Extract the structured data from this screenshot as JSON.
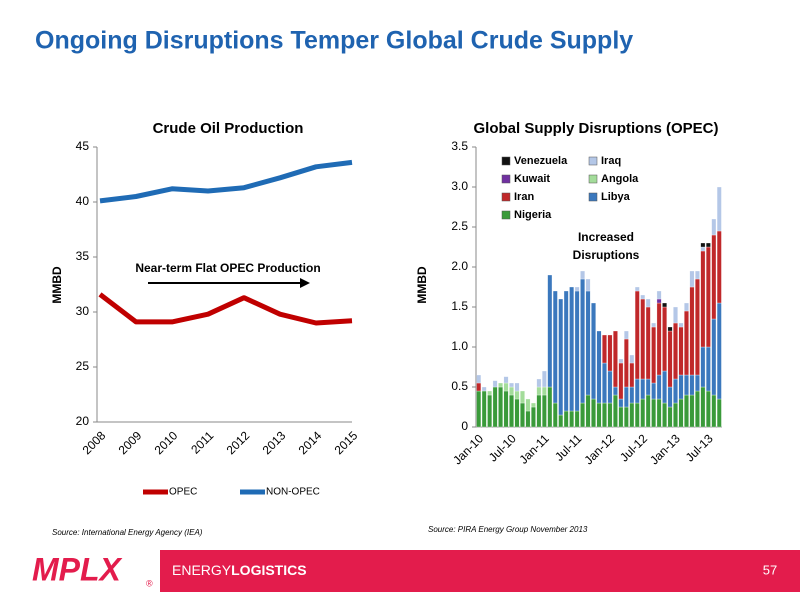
{
  "title": "Ongoing Disruptions Temper Global Crude Supply",
  "chart_data": [
    {
      "type": "line",
      "title": "Crude Oil Production",
      "y_label": "MMBD",
      "source": "Source:  International Energy Agency (IEA)",
      "annotation": "Near-term Flat OPEC Production",
      "categories": [
        "2008",
        "2009",
        "2010",
        "2011",
        "2012",
        "2013",
        "2014",
        "2015"
      ],
      "series": [
        {
          "name": "OPEC",
          "color": "#c00000",
          "values": [
            31.6,
            29.1,
            29.1,
            29.8,
            31.3,
            29.8,
            29.0,
            29.2
          ]
        },
        {
          "name": "NON-OPEC",
          "color": "#1f6bb5",
          "values": [
            40.1,
            40.5,
            41.2,
            41.0,
            41.3,
            42.2,
            43.2,
            43.6
          ]
        }
      ],
      "ylim": [
        20,
        45
      ],
      "yticks": [
        20,
        25,
        30,
        35,
        40,
        45
      ],
      "legend": "bottom"
    },
    {
      "type": "stacked-bar",
      "title": "Global Supply Disruptions (OPEC)",
      "y_label": "MMBD",
      "source": "Source:  PIRA Energy Group November 2013",
      "annotation": "Increased Disruptions",
      "categories": [
        "Jan-10",
        null,
        null,
        null,
        null,
        null,
        "Jul-10",
        null,
        null,
        null,
        null,
        null,
        "Jan-11",
        null,
        null,
        null,
        null,
        null,
        "Jul-11",
        null,
        null,
        null,
        null,
        null,
        "Jan-12",
        null,
        null,
        null,
        null,
        null,
        "Jul-12",
        null,
        null,
        null,
        null,
        null,
        "Jan-13",
        null,
        null,
        null,
        null,
        null,
        "Jul-13",
        null,
        null
      ],
      "series": [
        {
          "name": "Nigeria",
          "color": "#3a9a3a",
          "values": [
            0.45,
            0.45,
            0.4,
            0.5,
            0.5,
            0.45,
            0.4,
            0.35,
            0.3,
            0.2,
            0.25,
            0.4,
            0.4,
            0.5,
            0.3,
            0.15,
            0.2,
            0.2,
            0.2,
            0.3,
            0.4,
            0.35,
            0.3,
            0.3,
            0.3,
            0.4,
            0.25,
            0.25,
            0.3,
            0.3,
            0.35,
            0.4,
            0.35,
            0.35,
            0.3,
            0.25,
            0.3,
            0.35,
            0.4,
            0.4,
            0.45,
            0.5,
            0.45,
            0.4,
            0.35
          ]
        },
        {
          "name": "Libya",
          "color": "#3b78bd",
          "values": [
            0,
            0,
            0,
            0,
            0,
            0,
            0,
            0,
            0,
            0,
            0,
            0,
            0,
            1.4,
            1.4,
            1.45,
            1.5,
            1.55,
            1.5,
            1.55,
            1.3,
            1.2,
            0.9,
            0.5,
            0.4,
            0.1,
            0.1,
            0.25,
            0.2,
            0.3,
            0.25,
            0.2,
            0.2,
            0.3,
            0.4,
            0.25,
            0.3,
            0.3,
            0.25,
            0.25,
            0.2,
            0.5,
            0.55,
            0.95,
            1.2
          ]
        },
        {
          "name": "Iran",
          "color": "#c0282a",
          "values": [
            0.1,
            0,
            0,
            0,
            0,
            0,
            0,
            0,
            0,
            0,
            0,
            0,
            0,
            0,
            0,
            0,
            0,
            0,
            0,
            0,
            0,
            0,
            0,
            0.35,
            0.45,
            0.7,
            0.45,
            0.6,
            0.3,
            1.1,
            1.0,
            0.9,
            0.7,
            0.9,
            0.8,
            0.7,
            0.7,
            0.6,
            0.8,
            1.1,
            1.2,
            1.2,
            1.25,
            1.05,
            0.9
          ]
        },
        {
          "name": "Angola",
          "color": "#a3dc9a",
          "values": [
            0,
            0,
            0.05,
            0,
            0.05,
            0.1,
            0.1,
            0.1,
            0.15,
            0.15,
            0.05,
            0.1,
            0.1,
            0,
            0,
            0,
            0,
            0,
            0,
            0,
            0,
            0,
            0,
            0,
            0,
            0,
            0,
            0,
            0,
            0,
            0,
            0,
            0,
            0,
            0,
            0,
            0,
            0,
            0,
            0,
            0,
            0,
            0,
            0,
            0
          ]
        },
        {
          "name": "Kuwait",
          "color": "#7030a0",
          "values": [
            0,
            0,
            0,
            0,
            0,
            0,
            0,
            0,
            0,
            0,
            0,
            0,
            0,
            0,
            0,
            0,
            0,
            0,
            0,
            0,
            0,
            0,
            0,
            0,
            0,
            0,
            0,
            0,
            0,
            0,
            0,
            0,
            0,
            0.05,
            0,
            0,
            0,
            0,
            0,
            0,
            0,
            0,
            0,
            0,
            0
          ]
        },
        {
          "name": "Iraq",
          "color": "#b4c7e7",
          "values": [
            0.1,
            0.05,
            0,
            0.08,
            0,
            0.08,
            0.05,
            0.1,
            0,
            0,
            0,
            0.1,
            0.2,
            0,
            0,
            0,
            0,
            0,
            0.05,
            0.1,
            0.15,
            0,
            0,
            0,
            0,
            0,
            0.05,
            0.1,
            0.1,
            0.05,
            0.05,
            0.1,
            0.05,
            0.1,
            0,
            0,
            0.2,
            0.05,
            0.1,
            0.2,
            0.1,
            0.05,
            0,
            0.2,
            0.55
          ]
        },
        {
          "name": "Venezuela",
          "color": "#111111",
          "values": [
            0,
            0,
            0,
            0,
            0,
            0,
            0,
            0,
            0,
            0,
            0,
            0,
            0,
            0,
            0,
            0,
            0,
            0,
            0,
            0,
            0,
            0,
            0,
            0,
            0,
            0,
            0,
            0,
            0,
            0,
            0,
            0,
            0,
            0,
            0.05,
            0.05,
            0,
            0,
            0,
            0,
            0,
            0.05,
            0.05,
            0,
            0
          ]
        }
      ],
      "ylim": [
        0,
        3.5
      ],
      "yticks": [
        0,
        0.5,
        {
          "value": 1,
          "label": "1.0"
        },
        1.5,
        {
          "value": 2,
          "label": "2.0"
        },
        2.5,
        {
          "value": 3,
          "label": "3.0"
        },
        3.5
      ],
      "legend": "upper left"
    }
  ],
  "footer": {
    "logo": "MPLX",
    "registered": "®",
    "brand_light": "ENERGY",
    "brand_bold": "LOGISTICS",
    "page": "57"
  }
}
